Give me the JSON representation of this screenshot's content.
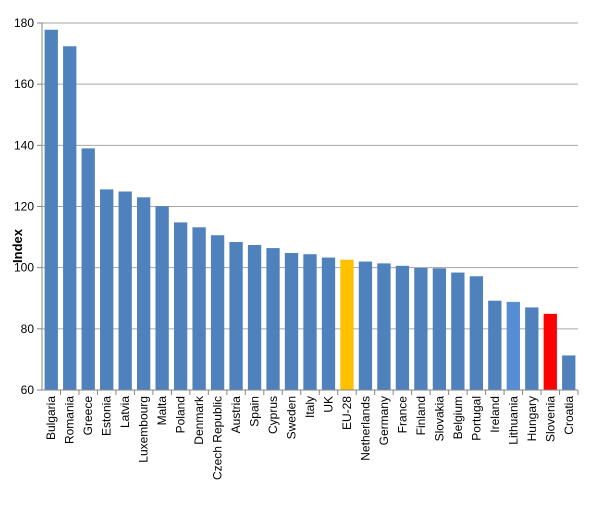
{
  "chart_data": {
    "type": "bar",
    "ylabel": "Index",
    "xlabel": "",
    "ylim": [
      60,
      180
    ],
    "yticks": [
      60,
      80,
      100,
      120,
      140,
      160,
      180
    ],
    "grid": true,
    "legend": "none",
    "categories": [
      "Bulgaria",
      "Romania",
      "Greece",
      "Estonia",
      "Latvia",
      "Luxembourg",
      "Malta",
      "Poland",
      "Denmark",
      "Czech Republic",
      "Austria",
      "Spain",
      "Cyprus",
      "Sweden",
      "Italy",
      "UK",
      "EU-28",
      "Netherlands",
      "Germany",
      "France",
      "Finland",
      "Slovakia",
      "Belgium",
      "Portugal",
      "Ireland",
      "Lithuania",
      "Hungary",
      "Slovenia",
      "Croatia"
    ],
    "values": [
      177.8,
      172.4,
      139.0,
      125.6,
      124.9,
      123.0,
      120.1,
      114.8,
      113.2,
      110.6,
      108.4,
      107.4,
      106.4,
      104.8,
      104.4,
      103.3,
      102.6,
      102.0,
      101.4,
      100.6,
      99.9,
      99.8,
      98.4,
      97.2,
      89.2,
      88.8,
      87.0,
      84.9,
      71.3
    ],
    "colors": {
      "default": "#4f81bd",
      "EU-28": "#ffc000",
      "Lithuania": "#558ed5",
      "Slovenia": "#ff0000",
      "grid": "#a6a6a6",
      "axis": "#868686"
    }
  }
}
